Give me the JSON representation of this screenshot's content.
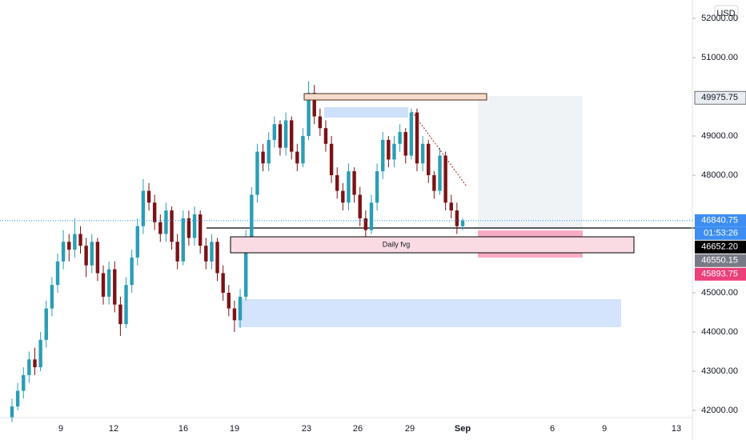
{
  "chart_data": {
    "type": "candlestick",
    "currency": "USD",
    "annotation": "Daily fvg",
    "countdown": "01:53:26",
    "up_color": "#2a9db5",
    "down_color": "#7b1216",
    "ylim": [
      41816,
      52469
    ],
    "yticks": [
      {
        "value": 42000,
        "label": "42000.00"
      },
      {
        "value": 43000,
        "label": "43000.00"
      },
      {
        "value": 44000,
        "label": "44000.00"
      },
      {
        "value": 45000,
        "label": "45000.00"
      },
      {
        "value": 48000,
        "label": "48000.00"
      },
      {
        "value": 49000,
        "label": "49000.00"
      },
      {
        "value": 51000,
        "label": "51000.00"
      },
      {
        "value": 52000,
        "label": "52000.00"
      }
    ],
    "xlabels": [
      "9",
      "12",
      "16",
      "19",
      "23",
      "26",
      "29",
      "Sep",
      "6",
      "9",
      "13"
    ],
    "price_labels": [
      49975.75,
      46840.75,
      {
        "value": 46652.2,
        "label": "46652.20"
      },
      46550.15,
      45893.75
    ],
    "price_label_colors": [
      "#e9ecf1",
      "#3d8ef0",
      "#000000",
      "#787b86",
      "#ec407a"
    ],
    "ohlc": [
      [
        41800,
        42300,
        41700,
        42100
      ],
      [
        42100,
        42700,
        42000,
        42500
      ],
      [
        42500,
        43100,
        42300,
        42900
      ],
      [
        42900,
        43500,
        42700,
        43300
      ],
      [
        43300,
        43600,
        42900,
        43100
      ],
      [
        43100,
        44000,
        43000,
        43800
      ],
      [
        43800,
        44800,
        43600,
        44600
      ],
      [
        44600,
        45400,
        44400,
        45200
      ],
      [
        45200,
        46000,
        45000,
        45800
      ],
      [
        45800,
        46600,
        45600,
        46300
      ],
      [
        46300,
        46500,
        45800,
        46100
      ],
      [
        46100,
        46900,
        45900,
        46500
      ],
      [
        46500,
        46700,
        46000,
        46200
      ],
      [
        46200,
        46400,
        45400,
        45700
      ],
      [
        45700,
        46500,
        45500,
        46300
      ],
      [
        46300,
        46400,
        45300,
        45500
      ],
      [
        45500,
        45700,
        44700,
        44900
      ],
      [
        44900,
        45800,
        44700,
        45600
      ],
      [
        45600,
        45800,
        44500,
        44700
      ],
      [
        44700,
        44900,
        43900,
        44200
      ],
      [
        44200,
        45400,
        44100,
        45200
      ],
      [
        45200,
        46100,
        45000,
        45900
      ],
      [
        45900,
        46900,
        45700,
        46700
      ],
      [
        46700,
        47900,
        46500,
        47600
      ],
      [
        47600,
        47800,
        47100,
        47300
      ],
      [
        47300,
        47500,
        46600,
        46800
      ],
      [
        46800,
        47000,
        46300,
        46500
      ],
      [
        46500,
        47300,
        46300,
        47100
      ],
      [
        47100,
        47200,
        46100,
        46300
      ],
      [
        46300,
        46500,
        45600,
        45800
      ],
      [
        45800,
        47100,
        45700,
        46900
      ],
      [
        46900,
        47100,
        46200,
        46400
      ],
      [
        46400,
        47200,
        46200,
        47000
      ],
      [
        47000,
        47100,
        46000,
        46200
      ],
      [
        46200,
        46400,
        45600,
        45800
      ],
      [
        45800,
        46500,
        45600,
        46300
      ],
      [
        46300,
        46400,
        45300,
        45500
      ],
      [
        45500,
        45700,
        44800,
        45000
      ],
      [
        45000,
        45200,
        44400,
        44600
      ],
      [
        44600,
        44800,
        44000,
        44300
      ],
      [
        44300,
        45100,
        44100,
        44900
      ],
      [
        44900,
        46600,
        44800,
        46400
      ],
      [
        46400,
        47700,
        46300,
        47500
      ],
      [
        47500,
        48800,
        47300,
        48600
      ],
      [
        48600,
        48800,
        48100,
        48300
      ],
      [
        48300,
        49100,
        48100,
        48900
      ],
      [
        48900,
        49500,
        48700,
        49300
      ],
      [
        49300,
        49400,
        48500,
        48700
      ],
      [
        48700,
        49600,
        48500,
        49400
      ],
      [
        49400,
        49500,
        48400,
        48600
      ],
      [
        48600,
        48800,
        48100,
        48300
      ],
      [
        48300,
        49200,
        48200,
        49000
      ],
      [
        49000,
        50400,
        48900,
        50100
      ],
      [
        50100,
        50300,
        49300,
        49500
      ],
      [
        49500,
        49700,
        49000,
        49200
      ],
      [
        49200,
        49400,
        48600,
        48800
      ],
      [
        48800,
        49000,
        47800,
        48000
      ],
      [
        48000,
        48200,
        47400,
        47600
      ],
      [
        47600,
        47800,
        47100,
        47300
      ],
      [
        47300,
        48300,
        47100,
        48100
      ],
      [
        48100,
        48200,
        47300,
        47500
      ],
      [
        47500,
        47700,
        46700,
        46900
      ],
      [
        46900,
        47100,
        46400,
        46600
      ],
      [
        46600,
        47500,
        46500,
        47300
      ],
      [
        47300,
        48300,
        47100,
        48100
      ],
      [
        48100,
        49100,
        47900,
        48900
      ],
      [
        48900,
        49000,
        48200,
        48400
      ],
      [
        48400,
        49000,
        48200,
        48800
      ],
      [
        48800,
        49300,
        48600,
        49100
      ],
      [
        49100,
        49200,
        48300,
        48500
      ],
      [
        48500,
        49700,
        48400,
        49600
      ],
      [
        49600,
        49700,
        48100,
        48300
      ],
      [
        48300,
        49000,
        48100,
        48800
      ],
      [
        48800,
        48900,
        47800,
        48000
      ],
      [
        48000,
        48100,
        47400,
        47600
      ],
      [
        47600,
        48700,
        47500,
        48500
      ],
      [
        48500,
        48600,
        47100,
        47300
      ],
      [
        47300,
        47500,
        46900,
        47100
      ],
      [
        47100,
        47300,
        46500,
        46700
      ],
      [
        46700,
        46900,
        46600,
        46840.75
      ]
    ]
  }
}
